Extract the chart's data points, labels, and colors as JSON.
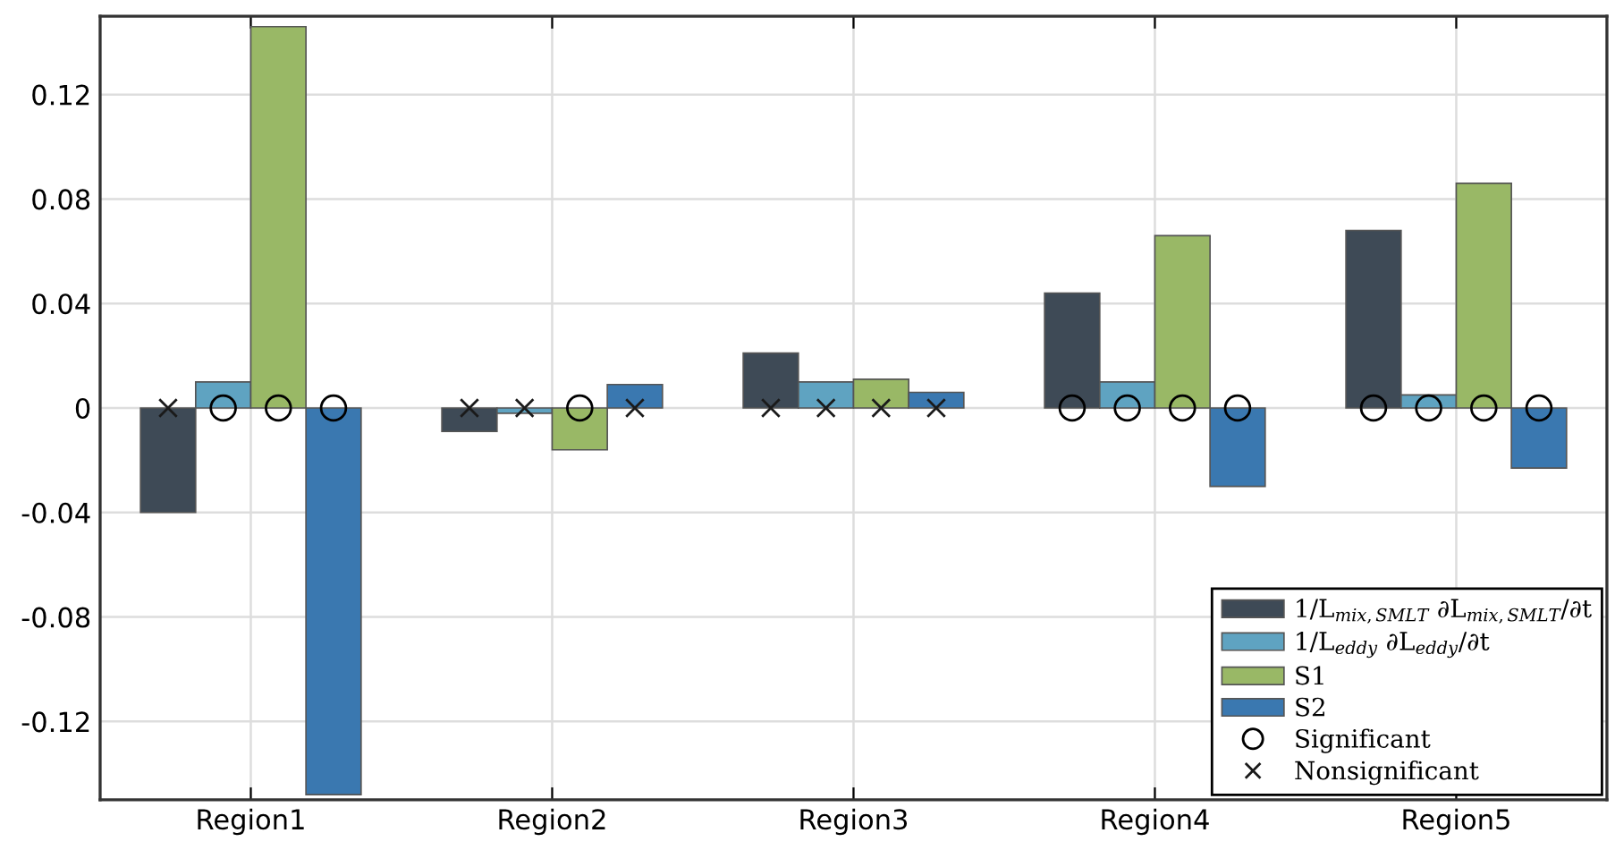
{
  "chart_data": {
    "type": "bar",
    "categories": [
      "Region1",
      "Region2",
      "Region3",
      "Region4",
      "Region5"
    ],
    "series": [
      {
        "name": "1/L$_{mix,SMLT}$ ∂L$_{mix,SMLT}$/∂t",
        "color": "#3e4a56",
        "values": [
          -0.04,
          -0.009,
          0.021,
          0.044,
          0.068
        ]
      },
      {
        "name": "1/L$_{eddy}$ ∂L$_{eddy}$/∂t",
        "color": "#5fa3c1",
        "values": [
          0.01,
          -0.002,
          0.01,
          0.01,
          0.005
        ]
      },
      {
        "name": "S1",
        "color": "#99b866",
        "values": [
          0.146,
          -0.016,
          0.011,
          0.066,
          0.086
        ]
      },
      {
        "name": "S2",
        "color": "#3a78b0",
        "values": [
          -0.148,
          0.009,
          0.006,
          -0.03,
          -0.023
        ]
      },
      {
        "name": "Significant",
        "type": "scatter",
        "marker": "circle",
        "color": "#000000",
        "x": [
          "Region1",
          "Region2",
          "Region3",
          "Region4",
          "Region5",
          "Region1",
          "Region2",
          "Region3",
          "Region4",
          "Region5",
          "Region1",
          "Region2",
          "Region3",
          "Region4",
          "Region5",
          "Region1",
          "Region2",
          "Region3",
          "Region4",
          "Region5"
        ],
        "values": [
          null,
          null,
          null,
          0,
          0,
          0,
          null,
          null,
          0,
          0,
          0,
          0,
          null,
          0,
          0,
          0,
          null,
          null,
          0,
          0
        ]
      },
      {
        "name": "Nonsignificant",
        "type": "scatter",
        "marker": "cross",
        "color": "#1a1a1a",
        "x": [
          "Region1",
          "Region2",
          "Region3",
          "Region4",
          "Region5",
          "Region1",
          "Region2",
          "Region3",
          "Region4",
          "Region5",
          "Region1",
          "Region2",
          "Region3",
          "Region4",
          "Region5",
          "Region1",
          "Region2",
          "Region3",
          "Region4",
          "Region5"
        ],
        "values": [
          0,
          0,
          0,
          null,
          null,
          null,
          0,
          0,
          null,
          null,
          null,
          null,
          0,
          null,
          null,
          null,
          0,
          0,
          null,
          null
        ]
      }
    ],
    "ylim": [
      -0.15,
      0.15
    ],
    "yticks": [
      -0.12,
      -0.08,
      -0.04,
      0,
      0.04,
      0.08,
      0.12
    ],
    "grid": true,
    "legend": "bottom right"
  }
}
